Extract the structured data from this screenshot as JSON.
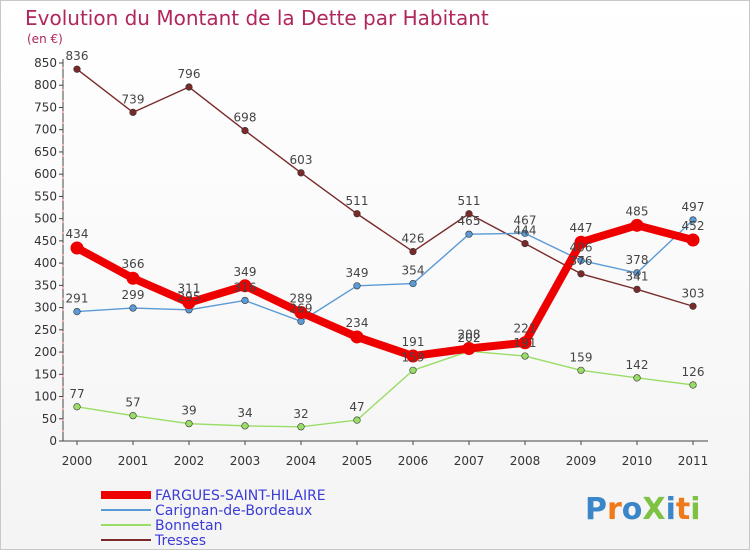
{
  "chart_data": {
    "type": "line",
    "title": "Evolution du Montant de la Dette par Habitant",
    "unit_label": "(en €)",
    "x": [
      "2000",
      "2001",
      "2002",
      "2003",
      "2004",
      "2005",
      "2006",
      "2007",
      "2008",
      "2009",
      "2010",
      "2011"
    ],
    "ylim": [
      0,
      850
    ],
    "yticks": [
      0,
      50,
      100,
      150,
      200,
      250,
      300,
      350,
      400,
      450,
      500,
      550,
      600,
      650,
      700,
      750,
      800,
      850
    ],
    "grid": false,
    "legend_position": "bottom-left",
    "series": [
      {
        "name": "Tresses",
        "color": "#7a2a2a",
        "values": [
          836,
          739,
          796,
          698,
          603,
          511,
          426,
          511,
          444,
          376,
          341,
          303
        ]
      },
      {
        "name": "Carignan-de-Bordeaux",
        "color": "#5a9ad5",
        "values": [
          291,
          299,
          295,
          316,
          269,
          349,
          354,
          465,
          467,
          406,
          378,
          497
        ]
      },
      {
        "name": "Bonnetan",
        "color": "#99dd66",
        "values": [
          77,
          57,
          39,
          34,
          32,
          47,
          159,
          202,
          191,
          159,
          142,
          126
        ]
      },
      {
        "name": "FARGUES-SAINT-HILAIRE",
        "color": "#ee0000",
        "values": [
          434,
          366,
          311,
          349,
          289,
          234,
          191,
          208,
          221,
          447,
          485,
          452
        ]
      }
    ],
    "labels": {
      "Tresses": [
        "836",
        "739",
        "796",
        "698",
        "603",
        "511",
        "426",
        "511",
        "444",
        "376",
        "341",
        "303"
      ],
      "Carignan-de-Bordeaux": [
        "291",
        "299",
        "295",
        "316",
        "269",
        "349",
        "354",
        "465",
        "467",
        "406",
        "378",
        "497"
      ],
      "Bonnetan": [
        "77",
        "57",
        "39",
        "34",
        "32",
        "47",
        "159",
        "202",
        "191",
        "159",
        "142",
        "126"
      ],
      "FARGUES-SAINT-HILAIRE": [
        "434",
        "366",
        "311",
        "349",
        "289",
        "234",
        "191",
        "208",
        "221",
        "447",
        "485",
        "452"
      ]
    },
    "legend": [
      "FARGUES-SAINT-HILAIRE",
      "Carignan-de-Bordeaux",
      "Bonnetan",
      "Tresses"
    ]
  },
  "logo": {
    "text": "ProXiti",
    "letters": [
      "P",
      "r",
      "o",
      "X",
      "i",
      "t",
      "i"
    ],
    "colors": [
      "#3a86c8",
      "#f07a1a",
      "#3a86c8",
      "#7dc242",
      "#3a86c8",
      "#f07a1a",
      "#7dc242"
    ]
  }
}
